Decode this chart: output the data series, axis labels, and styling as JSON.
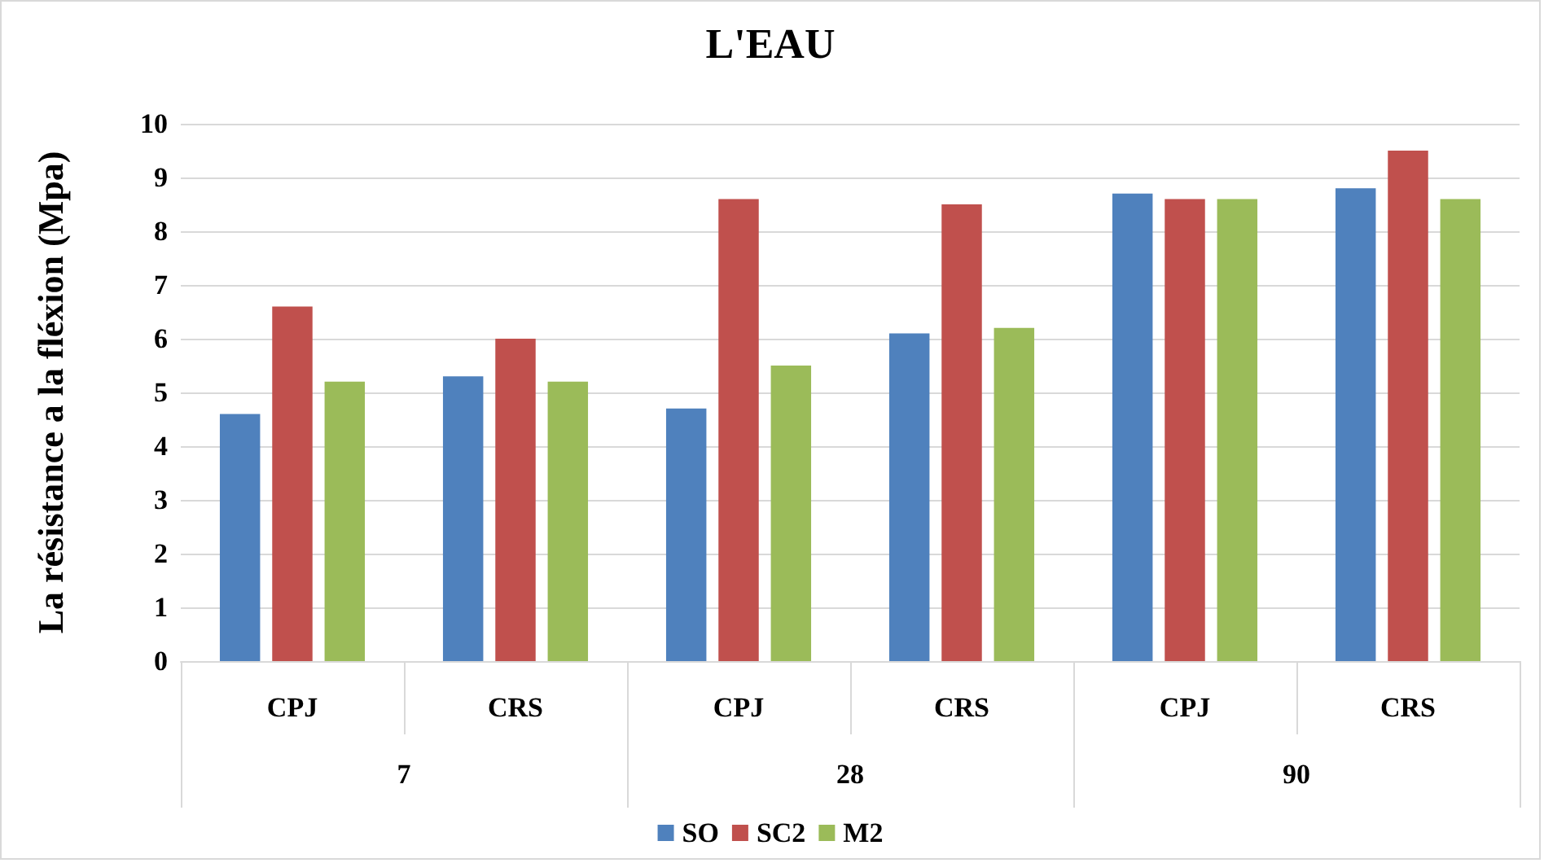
{
  "chart_data": {
    "type": "bar",
    "title": "L'EAU",
    "ylabel": "La résistance a la fléxion (Mpa)",
    "categories": [
      "CPJ",
      "CRS",
      "CPJ",
      "CRS",
      "CPJ",
      "CRS"
    ],
    "annotations": [
      "7",
      "28",
      "90"
    ],
    "series": [
      {
        "name": "SO",
        "color": "#4f81bd",
        "values": [
          4.6,
          5.3,
          4.7,
          6.1,
          8.7,
          8.8
        ]
      },
      {
        "name": "SC2",
        "color": "#c0504d",
        "values": [
          6.6,
          6.0,
          8.6,
          8.5,
          8.6,
          9.5
        ]
      },
      {
        "name": "M2",
        "color": "#9bbb59",
        "values": [
          5.2,
          5.2,
          5.5,
          6.2,
          8.6,
          8.6
        ]
      }
    ],
    "ylim": [
      0,
      10
    ],
    "yticks": [
      0,
      1,
      2,
      3,
      4,
      5,
      6,
      7,
      8,
      9,
      10
    ],
    "grid": "y",
    "legend": "bottom"
  }
}
